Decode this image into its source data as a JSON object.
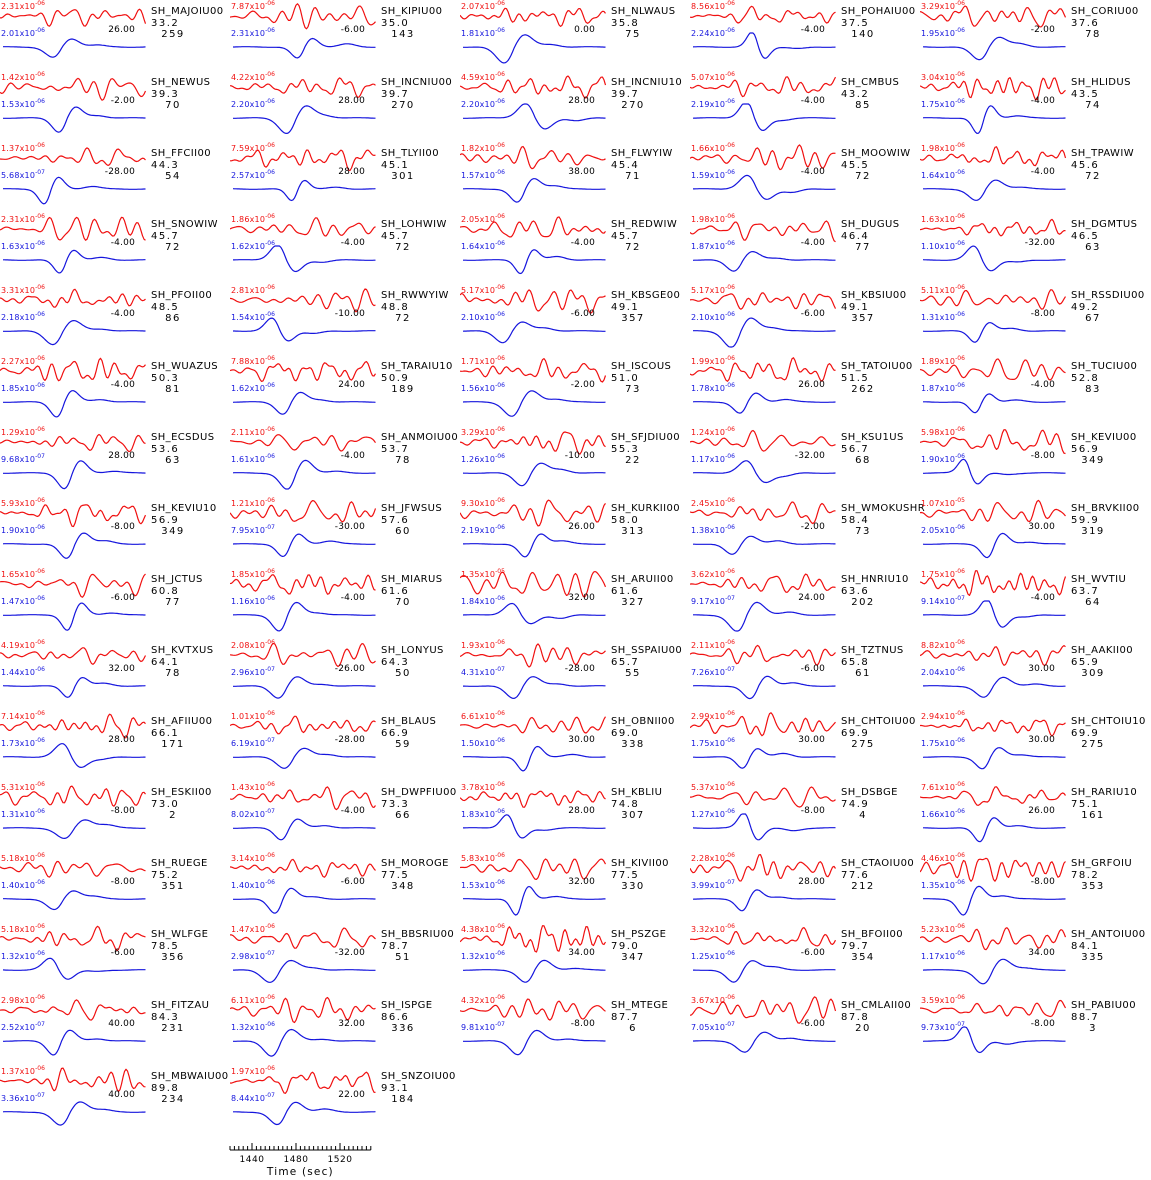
{
  "colors": {
    "observed": "#f01010",
    "synthetic": "#1515dd",
    "text": "#000000",
    "background": "#ffffff"
  },
  "chart_data": {
    "type": "line",
    "description": "Grid of SH-wave seismogram pairs: observed trace (red) over synthetic trace (blue) for each station. Per cell: red peak amplitude, blue peak amplitude, time shift (sec), station code, epicentral distance (deg), azimuth (deg).",
    "x_axis": {
      "label": "Time (sec)",
      "major_ticks": [
        "1440",
        "1480",
        "1520"
      ],
      "minor_tick_interval_sec": 4,
      "range_sec": [
        1420,
        1548
      ]
    },
    "grid": {
      "columns": 5,
      "rows": 16
    },
    "stations": [
      {
        "name": "SH_MAJOIU00",
        "obs_amp": "2.31x10-06",
        "syn_amp": "2.01x10-06",
        "time_shift": "26.00",
        "distance": "33.2",
        "azimuth": "259"
      },
      {
        "name": "SH_KIPIU00",
        "obs_amp": "7.87x10-06",
        "syn_amp": "2.31x10-06",
        "time_shift": "-6.00",
        "distance": "35.0",
        "azimuth": "143"
      },
      {
        "name": "SH_NLWAUS",
        "obs_amp": "2.07x10-06",
        "syn_amp": "1.81x10-06",
        "time_shift": "0.00",
        "distance": "35.8",
        "azimuth": "75"
      },
      {
        "name": "SH_POHAIU00",
        "obs_amp": "8.56x10-06",
        "syn_amp": "2.24x10-06",
        "time_shift": "-4.00",
        "distance": "37.5",
        "azimuth": "140"
      },
      {
        "name": "SH_CORIU00",
        "obs_amp": "3.29x10-06",
        "syn_amp": "1.95x10-06",
        "time_shift": "-2.00",
        "distance": "37.6",
        "azimuth": "78"
      },
      {
        "name": "SH_NEWUS",
        "obs_amp": "1.42x10-06",
        "syn_amp": "1.53x10-06",
        "time_shift": "-2.00",
        "distance": "39.3",
        "azimuth": "70"
      },
      {
        "name": "SH_INCNIU00",
        "obs_amp": "4.22x10-06",
        "syn_amp": "2.20x10-06",
        "time_shift": "28.00",
        "distance": "39.7",
        "azimuth": "270"
      },
      {
        "name": "SH_INCNIU10",
        "obs_amp": "4.59x10-06",
        "syn_amp": "2.20x10-06",
        "time_shift": "28.00",
        "distance": "39.7",
        "azimuth": "270"
      },
      {
        "name": "SH_CMBUS",
        "obs_amp": "5.07x10-06",
        "syn_amp": "2.19x10-06",
        "time_shift": "-4.00",
        "distance": "43.2",
        "azimuth": "85"
      },
      {
        "name": "SH_HLIDUS",
        "obs_amp": "3.04x10-06",
        "syn_amp": "1.75x10-06",
        "time_shift": "-4.00",
        "distance": "43.5",
        "azimuth": "74"
      },
      {
        "name": "SH_FFCII00",
        "obs_amp": "1.37x10-06",
        "syn_amp": "5.68x10-07",
        "time_shift": "-28.00",
        "distance": "44.3",
        "azimuth": "54"
      },
      {
        "name": "SH_TLYII00",
        "obs_amp": "7.59x10-06",
        "syn_amp": "2.57x10-06",
        "time_shift": "28.00",
        "distance": "45.1",
        "azimuth": "301"
      },
      {
        "name": "SH_FLWYIW",
        "obs_amp": "1.82x10-06",
        "syn_amp": "1.57x10-06",
        "time_shift": "38.00",
        "distance": "45.4",
        "azimuth": "71"
      },
      {
        "name": "SH_MOOWIW",
        "obs_amp": "1.66x10-06",
        "syn_amp": "1.59x10-06",
        "time_shift": "-4.00",
        "distance": "45.5",
        "azimuth": "72"
      },
      {
        "name": "SH_TPAWIW",
        "obs_amp": "1.98x10-06",
        "syn_amp": "1.64x10-06",
        "time_shift": "-4.00",
        "distance": "45.6",
        "azimuth": "72"
      },
      {
        "name": "SH_SNOWIW",
        "obs_amp": "2.31x10-06",
        "syn_amp": "1.63x10-06",
        "time_shift": "-4.00",
        "distance": "45.7",
        "azimuth": "72"
      },
      {
        "name": "SH_LOHWIW",
        "obs_amp": "1.86x10-06",
        "syn_amp": "1.62x10-06",
        "time_shift": "-4.00",
        "distance": "45.7",
        "azimuth": "72"
      },
      {
        "name": "SH_REDWIW",
        "obs_amp": "2.05x10-06",
        "syn_amp": "1.64x10-06",
        "time_shift": "-4.00",
        "distance": "45.7",
        "azimuth": "72"
      },
      {
        "name": "SH_DUGUS",
        "obs_amp": "1.98x10-06",
        "syn_amp": "1.87x10-06",
        "time_shift": "-4.00",
        "distance": "46.4",
        "azimuth": "77"
      },
      {
        "name": "SH_DGMTUS",
        "obs_amp": "1.63x10-06",
        "syn_amp": "1.10x10-06",
        "time_shift": "-32.00",
        "distance": "46.5",
        "azimuth": "63"
      },
      {
        "name": "SH_PFOII00",
        "obs_amp": "3.31x10-06",
        "syn_amp": "2.18x10-06",
        "time_shift": "-4.00",
        "distance": "48.5",
        "azimuth": "86"
      },
      {
        "name": "SH_RWWYIW",
        "obs_amp": "2.81x10-06",
        "syn_amp": "1.54x10-06",
        "time_shift": "-10.00",
        "distance": "48.8",
        "azimuth": "72"
      },
      {
        "name": "SH_KBSGE00",
        "obs_amp": "5.17x10-06",
        "syn_amp": "2.10x10-06",
        "time_shift": "-6.00",
        "distance": "49.1",
        "azimuth": "357"
      },
      {
        "name": "SH_KBSIU00",
        "obs_amp": "5.17x10-06",
        "syn_amp": "2.10x10-06",
        "time_shift": "-6.00",
        "distance": "49.1",
        "azimuth": "357"
      },
      {
        "name": "SH_RSSDIU00",
        "obs_amp": "5.11x10-06",
        "syn_amp": "1.31x10-06",
        "time_shift": "-8.00",
        "distance": "49.2",
        "azimuth": "67"
      },
      {
        "name": "SH_WUAZUS",
        "obs_amp": "2.27x10-06",
        "syn_amp": "1.85x10-06",
        "time_shift": "-4.00",
        "distance": "50.3",
        "azimuth": "81"
      },
      {
        "name": "SH_TARAIU10",
        "obs_amp": "7.88x10-06",
        "syn_amp": "1.62x10-06",
        "time_shift": "24.00",
        "distance": "50.9",
        "azimuth": "189"
      },
      {
        "name": "SH_ISCOUS",
        "obs_amp": "1.71x10-06",
        "syn_amp": "1.56x10-06",
        "time_shift": "-2.00",
        "distance": "51.0",
        "azimuth": "73"
      },
      {
        "name": "SH_TATOIU00",
        "obs_amp": "1.99x10-06",
        "syn_amp": "1.78x10-06",
        "time_shift": "26.00",
        "distance": "51.5",
        "azimuth": "262"
      },
      {
        "name": "SH_TUCIU00",
        "obs_amp": "1.89x10-06",
        "syn_amp": "1.87x10-06",
        "time_shift": "-4.00",
        "distance": "52.8",
        "azimuth": "83"
      },
      {
        "name": "SH_ECSDUS",
        "obs_amp": "1.29x10-06",
        "syn_amp": "9.68x10-07",
        "time_shift": "28.00",
        "distance": "53.6",
        "azimuth": "63"
      },
      {
        "name": "SH_ANMOIU00",
        "obs_amp": "2.11x10-06",
        "syn_amp": "1.61x10-06",
        "time_shift": "-4.00",
        "distance": "53.7",
        "azimuth": "78"
      },
      {
        "name": "SH_SFJDIU00",
        "obs_amp": "3.29x10-06",
        "syn_amp": "1.26x10-06",
        "time_shift": "-10.00",
        "distance": "55.3",
        "azimuth": "22"
      },
      {
        "name": "SH_KSU1US",
        "obs_amp": "1.24x10-06",
        "syn_amp": "1.17x10-06",
        "time_shift": "-32.00",
        "distance": "56.7",
        "azimuth": "68"
      },
      {
        "name": "SH_KEVIU00",
        "obs_amp": "5.98x10-06",
        "syn_amp": "1.90x10-06",
        "time_shift": "-8.00",
        "distance": "56.9",
        "azimuth": "349"
      },
      {
        "name": "SH_KEVIU10",
        "obs_amp": "5.93x10-06",
        "syn_amp": "1.90x10-06",
        "time_shift": "-8.00",
        "distance": "56.9",
        "azimuth": "349"
      },
      {
        "name": "SH_JFWSUS",
        "obs_amp": "1.21x10-06",
        "syn_amp": "7.95x10-07",
        "time_shift": "-30.00",
        "distance": "57.6",
        "azimuth": "60"
      },
      {
        "name": "SH_KURKII00",
        "obs_amp": "9.30x10-06",
        "syn_amp": "2.19x10-06",
        "time_shift": "26.00",
        "distance": "58.0",
        "azimuth": "313"
      },
      {
        "name": "SH_WMOKUSHR",
        "obs_amp": "2.45x10-06",
        "syn_amp": "1.38x10-06",
        "time_shift": "-2.00",
        "distance": "58.4",
        "azimuth": "73"
      },
      {
        "name": "SH_BRVKII00",
        "obs_amp": "1.07x10-05",
        "syn_amp": "2.05x10-06",
        "time_shift": "30.00",
        "distance": "59.9",
        "azimuth": "319"
      },
      {
        "name": "SH_JCTUS",
        "obs_amp": "1.65x10-06",
        "syn_amp": "1.47x10-06",
        "time_shift": "-6.00",
        "distance": "60.8",
        "azimuth": "77"
      },
      {
        "name": "SH_MIARUS",
        "obs_amp": "1.85x10-06",
        "syn_amp": "1.16x10-06",
        "time_shift": "-4.00",
        "distance": "61.6",
        "azimuth": "70"
      },
      {
        "name": "SH_ARUII00",
        "obs_amp": "1.35x10-05",
        "syn_amp": "1.84x10-06",
        "time_shift": "32.00",
        "distance": "61.6",
        "azimuth": "327"
      },
      {
        "name": "SH_HNRIU10",
        "obs_amp": "3.62x10-06",
        "syn_amp": "9.17x10-07",
        "time_shift": "24.00",
        "distance": "63.6",
        "azimuth": "202"
      },
      {
        "name": "SH_WVTIU",
        "obs_amp": "1.75x10-06",
        "syn_amp": "9.14x10-07",
        "time_shift": "-4.00",
        "distance": "63.7",
        "azimuth": "64"
      },
      {
        "name": "SH_KVTXUS",
        "obs_amp": "4.19x10-06",
        "syn_amp": "1.44x10-06",
        "time_shift": "32.00",
        "distance": "64.1",
        "azimuth": "78"
      },
      {
        "name": "SH_LONYUS",
        "obs_amp": "2.08x10-06",
        "syn_amp": "2.96x10-07",
        "time_shift": "-26.00",
        "distance": "64.3",
        "azimuth": "50"
      },
      {
        "name": "SH_SSPAIU00",
        "obs_amp": "1.93x10-06",
        "syn_amp": "4.31x10-07",
        "time_shift": "-28.00",
        "distance": "65.7",
        "azimuth": "55"
      },
      {
        "name": "SH_TZTNUS",
        "obs_amp": "2.11x10-06",
        "syn_amp": "7.26x10-07",
        "time_shift": "-6.00",
        "distance": "65.8",
        "azimuth": "61"
      },
      {
        "name": "SH_AAKII00",
        "obs_amp": "8.82x10-06",
        "syn_amp": "2.04x10-06",
        "time_shift": "30.00",
        "distance": "65.9",
        "azimuth": "309"
      },
      {
        "name": "SH_AFIIU00",
        "obs_amp": "7.14x10-06",
        "syn_amp": "1.73x10-06",
        "time_shift": "28.00",
        "distance": "66.1",
        "azimuth": "171"
      },
      {
        "name": "SH_BLAUS",
        "obs_amp": "1.01x10-06",
        "syn_amp": "6.19x10-07",
        "time_shift": "-28.00",
        "distance": "66.9",
        "azimuth": "59"
      },
      {
        "name": "SH_OBNII00",
        "obs_amp": "6.61x10-06",
        "syn_amp": "1.50x10-06",
        "time_shift": "30.00",
        "distance": "69.0",
        "azimuth": "338"
      },
      {
        "name": "SH_CHTOIU00",
        "obs_amp": "2.99x10-06",
        "syn_amp": "1.75x10-06",
        "time_shift": "30.00",
        "distance": "69.9",
        "azimuth": "275"
      },
      {
        "name": "SH_CHTOIU10",
        "obs_amp": "2.94x10-06",
        "syn_amp": "1.75x10-06",
        "time_shift": "30.00",
        "distance": "69.9",
        "azimuth": "275"
      },
      {
        "name": "SH_ESKII00",
        "obs_amp": "5.31x10-06",
        "syn_amp": "1.31x10-06",
        "time_shift": "-8.00",
        "distance": "73.0",
        "azimuth": "2"
      },
      {
        "name": "SH_DWPFIU00",
        "obs_amp": "1.43x10-06",
        "syn_amp": "8.02x10-07",
        "time_shift": "-4.00",
        "distance": "73.3",
        "azimuth": "66"
      },
      {
        "name": "SH_KBLIU",
        "obs_amp": "3.78x10-06",
        "syn_amp": "1.83x10-06",
        "time_shift": "28.00",
        "distance": "74.8",
        "azimuth": "307"
      },
      {
        "name": "SH_DSBGE",
        "obs_amp": "5.37x10-06",
        "syn_amp": "1.27x10-06",
        "time_shift": "-8.00",
        "distance": "74.9",
        "azimuth": "4"
      },
      {
        "name": "SH_RARIU10",
        "obs_amp": "7.61x10-06",
        "syn_amp": "1.66x10-06",
        "time_shift": "26.00",
        "distance": "75.1",
        "azimuth": "161"
      },
      {
        "name": "SH_RUEGE",
        "obs_amp": "5.18x10-06",
        "syn_amp": "1.40x10-06",
        "time_shift": "-8.00",
        "distance": "75.2",
        "azimuth": "351"
      },
      {
        "name": "SH_MOROGE",
        "obs_amp": "3.14x10-06",
        "syn_amp": "1.40x10-06",
        "time_shift": "-6.00",
        "distance": "77.5",
        "azimuth": "348"
      },
      {
        "name": "SH_KIVII00",
        "obs_amp": "5.83x10-06",
        "syn_amp": "1.53x10-06",
        "time_shift": "32.00",
        "distance": "77.5",
        "azimuth": "330"
      },
      {
        "name": "SH_CTAOIU00",
        "obs_amp": "2.28x10-06",
        "syn_amp": "3.99x10-07",
        "time_shift": "28.00",
        "distance": "77.6",
        "azimuth": "212"
      },
      {
        "name": "SH_GRFOIU",
        "obs_amp": "4.46x10-06",
        "syn_amp": "1.35x10-06",
        "time_shift": "-8.00",
        "distance": "78.2",
        "azimuth": "353"
      },
      {
        "name": "SH_WLFGE",
        "obs_amp": "5.18x10-06",
        "syn_amp": "1.32x10-06",
        "time_shift": "-6.00",
        "distance": "78.5",
        "azimuth": "356"
      },
      {
        "name": "SH_BBSRIU00",
        "obs_amp": "1.47x10-06",
        "syn_amp": "2.98x10-07",
        "time_shift": "-32.00",
        "distance": "78.7",
        "azimuth": "51"
      },
      {
        "name": "SH_PSZGE",
        "obs_amp": "4.38x10-06",
        "syn_amp": "1.32x10-06",
        "time_shift": "34.00",
        "distance": "79.0",
        "azimuth": "347"
      },
      {
        "name": "SH_BFOII00",
        "obs_amp": "3.32x10-06",
        "syn_amp": "1.25x10-06",
        "time_shift": "-6.00",
        "distance": "79.7",
        "azimuth": "354"
      },
      {
        "name": "SH_ANTOIU00",
        "obs_amp": "5.23x10-06",
        "syn_amp": "1.17x10-06",
        "time_shift": "34.00",
        "distance": "84.1",
        "azimuth": "335"
      },
      {
        "name": "SH_FITZAU",
        "obs_amp": "2.98x10-06",
        "syn_amp": "2.52x10-07",
        "time_shift": "40.00",
        "distance": "84.3",
        "azimuth": "231"
      },
      {
        "name": "SH_ISPGE",
        "obs_amp": "6.11x10-06",
        "syn_amp": "1.32x10-06",
        "time_shift": "32.00",
        "distance": "86.6",
        "azimuth": "336"
      },
      {
        "name": "SH_MTEGE",
        "obs_amp": "4.32x10-06",
        "syn_amp": "9.81x10-07",
        "time_shift": "-8.00",
        "distance": "87.7",
        "azimuth": "6"
      },
      {
        "name": "SH_CMLAII00",
        "obs_amp": "3.67x10-06",
        "syn_amp": "7.05x10-07",
        "time_shift": "-6.00",
        "distance": "87.8",
        "azimuth": "20"
      },
      {
        "name": "SH_PABIU00",
        "obs_amp": "3.59x10-06",
        "syn_amp": "9.73x10-07",
        "time_shift": "-8.00",
        "distance": "88.7",
        "azimuth": "3"
      },
      {
        "name": "SH_MBWAIU00",
        "obs_amp": "1.37x10-06",
        "syn_amp": "3.36x10-07",
        "time_shift": "40.00",
        "distance": "89.8",
        "azimuth": "234"
      },
      {
        "name": "SH_SNZOIU00",
        "obs_amp": "1.97x10-06",
        "syn_amp": "8.44x10-07",
        "time_shift": "22.00",
        "distance": "93.1",
        "azimuth": "184"
      }
    ]
  }
}
